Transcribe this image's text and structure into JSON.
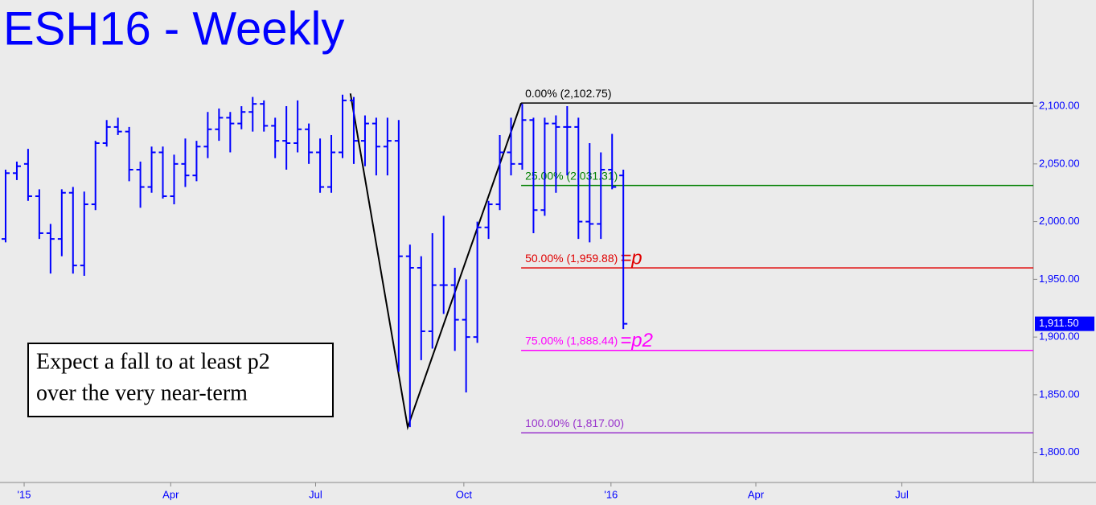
{
  "chart_data": {
    "type": "ohlc",
    "title": "ESH16 - Weekly",
    "color": "#0000ff",
    "x": [
      0,
      1,
      2,
      3,
      4,
      5,
      6,
      7,
      8,
      9,
      10,
      11,
      12,
      13,
      14,
      15,
      16,
      17,
      18,
      19,
      20,
      21,
      22,
      23,
      24,
      25,
      26,
      27,
      28,
      29,
      30,
      31,
      32,
      33,
      34,
      35,
      36,
      37,
      38,
      39,
      40,
      41,
      42,
      43,
      44,
      45,
      46,
      47,
      48,
      49,
      50,
      51,
      52,
      53,
      54,
      55
    ],
    "open": [
      1985,
      2042,
      2050,
      2022,
      1990,
      1985,
      2025,
      1962,
      2015,
      2068,
      2082,
      2078,
      2045,
      2030,
      2060,
      2022,
      2050,
      2040,
      2065,
      2080,
      2090,
      2085,
      2095,
      2102,
      2083,
      2070,
      2068,
      2080,
      2060,
      2030,
      2060,
      2105,
      2070,
      2085,
      2065,
      2070,
      1970,
      1960,
      1905,
      1945,
      1945,
      1915,
      1900,
      1995,
      2015,
      2060,
      2050,
      2088,
      2010,
      2085,
      2082,
      2082,
      2000,
      1998,
      2045,
      2040
    ],
    "high": [
      2045,
      2052,
      2063,
      2028,
      1998,
      2028,
      2030,
      2026,
      2070,
      2088,
      2090,
      2082,
      2052,
      2065,
      2065,
      2058,
      2072,
      2070,
      2095,
      2098,
      2095,
      2100,
      2108,
      2105,
      2090,
      2100,
      2105,
      2085,
      2072,
      2075,
      2110,
      2108,
      2092,
      2090,
      2090,
      2088,
      1980,
      1970,
      1990,
      2005,
      1960,
      1950,
      2000,
      2018,
      2075,
      2090,
      2102,
      2090,
      2090,
      2092,
      2100,
      2090,
      2068,
      2060,
      2076,
      2045
    ],
    "low": [
      1982,
      2036,
      2018,
      1985,
      1955,
      1970,
      1955,
      1953,
      2010,
      2065,
      2075,
      2035,
      2012,
      2025,
      2020,
      2015,
      2030,
      2035,
      2055,
      2070,
      2060,
      2080,
      2078,
      2078,
      2055,
      2045,
      2060,
      2050,
      2025,
      2025,
      2055,
      2050,
      2048,
      2040,
      2040,
      1870,
      1822,
      1880,
      1890,
      1920,
      1888,
      1852,
      1895,
      1985,
      2010,
      2040,
      2045,
      1990,
      2005,
      2025,
      2040,
      1985,
      1982,
      1985,
      2028,
      1907
    ],
    "close": [
      2042,
      2048,
      2022,
      1990,
      1985,
      2025,
      1962,
      2015,
      2068,
      2082,
      2078,
      2045,
      2030,
      2060,
      2022,
      2050,
      2040,
      2065,
      2080,
      2090,
      2085,
      2095,
      2102,
      2083,
      2070,
      2068,
      2080,
      2060,
      2030,
      2060,
      2105,
      2070,
      2085,
      2065,
      2070,
      1970,
      1960,
      1905,
      1945,
      1945,
      1915,
      1900,
      1995,
      2015,
      2060,
      2050,
      2088,
      2010,
      2085,
      2082,
      2082,
      2000,
      1998,
      2045,
      2030,
      1911.5
    ],
    "xlim": [
      -0.5,
      91.5
    ],
    "ylim": [
      1774,
      2192
    ],
    "xticks": [
      {
        "value": 1.65,
        "label": "'15"
      },
      {
        "value": 14.7,
        "label": "Apr"
      },
      {
        "value": 27.6,
        "label": "Jul"
      },
      {
        "value": 40.8,
        "label": "Oct"
      },
      {
        "value": 53.9,
        "label": "'16"
      },
      {
        "value": 66.8,
        "label": "Apr"
      },
      {
        "value": 79.8,
        "label": "Jul"
      }
    ],
    "yticks": [
      {
        "value": 1800,
        "label": "1,800.00"
      },
      {
        "value": 1850,
        "label": "1,850.00"
      },
      {
        "value": 1900,
        "label": "1,900.00"
      },
      {
        "value": 1950,
        "label": "1,950.00"
      },
      {
        "value": 2000,
        "label": "2,000.00"
      },
      {
        "value": 2050,
        "label": "2,050.00"
      },
      {
        "value": 2100,
        "label": "2,100.00"
      }
    ],
    "last_price": {
      "value": 1911.5,
      "label": "1,911.50"
    },
    "swing": {
      "x": [
        30.7,
        35.8,
        45.9
      ],
      "values": [
        2111,
        1822,
        2102.75
      ],
      "color": "#000000"
    },
    "fib_levels": [
      {
        "value": 2102.75,
        "label": "0.00% (2,102.75)",
        "color": "#000000"
      },
      {
        "value": 2031.31,
        "label": "25.00% (2,031.31)",
        "color": "#008000"
      },
      {
        "value": 1959.88,
        "label": "50.00% (1,959.88)",
        "color": "#e00000",
        "tag": "=p"
      },
      {
        "value": 1888.44,
        "label": "75.00% (1,888.44)",
        "color": "#ff00ff",
        "tag": "=p2"
      },
      {
        "value": 1817.0,
        "label": "100.00% (1,817.00)",
        "color": "#9933cc"
      }
    ],
    "annotation": [
      "Expect a fall to at least p2",
      "over the very near-term"
    ]
  }
}
